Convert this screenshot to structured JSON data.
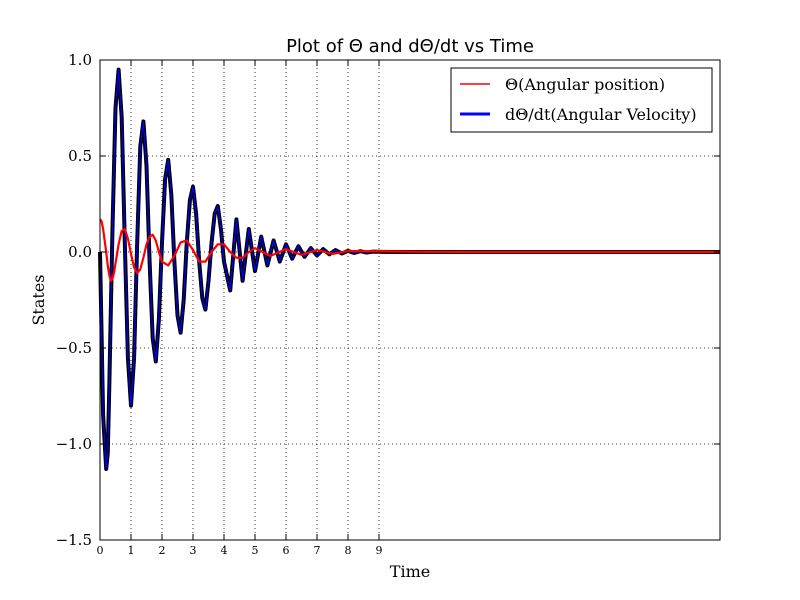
{
  "chart_data": {
    "type": "line",
    "title": "Plot of Θ and dΘ/dt vs Time",
    "xlabel": "Time",
    "ylabel": "States",
    "xlim": [
      0,
      20
    ],
    "ylim": [
      -1.5,
      1.0
    ],
    "xticks": [
      0,
      1,
      2,
      3,
      4,
      5,
      6,
      7,
      8,
      9
    ],
    "yticks": [
      1.0,
      0.5,
      0.0,
      -0.5,
      -1.0,
      -1.5
    ],
    "ytick_labels": [
      "1.0",
      "0.5",
      "0.0",
      "−0.5",
      "−1.0",
      "−1.5"
    ],
    "grid": true,
    "legend_position": "top-right",
    "series": [
      {
        "name": "Θ(Angular position)",
        "color": "#ff0000",
        "x": [
          0,
          0.05,
          0.1,
          0.15,
          0.2,
          0.25,
          0.3,
          0.35,
          0.4,
          0.45,
          0.5,
          0.6,
          0.7,
          0.8,
          0.9,
          1.0,
          1.1,
          1.2,
          1.3,
          1.4,
          1.5,
          1.6,
          1.7,
          1.8,
          1.9,
          2.0,
          2.2,
          2.4,
          2.6,
          2.8,
          3.0,
          3.2,
          3.4,
          3.6,
          3.8,
          4.0,
          4.2,
          4.4,
          4.6,
          4.8,
          5.0,
          5.5,
          6.0,
          6.5,
          7.0,
          7.5,
          8.0,
          9.0,
          10.0,
          12.0,
          14.0,
          16.0,
          18.0,
          20.0
        ],
        "y": [
          0.17,
          0.16,
          0.12,
          0.06,
          0.0,
          -0.07,
          -0.12,
          -0.15,
          -0.14,
          -0.11,
          -0.06,
          0.04,
          0.11,
          0.12,
          0.07,
          -0.01,
          -0.08,
          -0.11,
          -0.09,
          -0.03,
          0.04,
          0.08,
          0.09,
          0.06,
          0.0,
          -0.05,
          -0.07,
          -0.02,
          0.05,
          0.06,
          0.01,
          -0.05,
          -0.05,
          0.0,
          0.04,
          0.04,
          0.0,
          -0.03,
          -0.03,
          0.0,
          0.02,
          -0.02,
          0.015,
          -0.015,
          0.01,
          -0.01,
          0.005,
          0.004,
          0.002,
          0.0,
          0.0,
          0.0,
          0.0,
          0.0
        ]
      },
      {
        "name": "dΘ/dt(Angular Velocity)",
        "color": "#0000ff",
        "x": [
          0,
          0.1,
          0.2,
          0.25,
          0.3,
          0.4,
          0.5,
          0.6,
          0.7,
          0.8,
          0.9,
          1.0,
          1.1,
          1.2,
          1.3,
          1.4,
          1.5,
          1.6,
          1.7,
          1.8,
          1.9,
          2.0,
          2.1,
          2.2,
          2.3,
          2.4,
          2.5,
          2.6,
          2.7,
          2.8,
          2.9,
          3.0,
          3.1,
          3.2,
          3.3,
          3.4,
          3.5,
          3.6,
          3.7,
          3.8,
          3.9,
          4.0,
          4.2,
          4.4,
          4.6,
          4.8,
          5.0,
          5.2,
          5.4,
          5.6,
          5.8,
          6.0,
          6.2,
          6.4,
          6.6,
          6.8,
          7.0,
          7.2,
          7.4,
          7.6,
          7.8,
          8.0,
          8.2,
          8.4,
          8.6,
          8.8,
          9.0,
          9.5,
          10.0,
          11.0,
          12.0,
          14.0,
          16.0,
          18.0,
          20.0
        ],
        "y": [
          0.0,
          -0.85,
          -1.13,
          -1.05,
          -0.7,
          0.1,
          0.75,
          0.95,
          0.7,
          0.05,
          -0.55,
          -0.8,
          -0.55,
          0.05,
          0.55,
          0.68,
          0.45,
          -0.05,
          -0.45,
          -0.57,
          -0.35,
          0.05,
          0.38,
          0.48,
          0.3,
          -0.05,
          -0.33,
          -0.42,
          -0.25,
          0.05,
          0.27,
          0.34,
          0.2,
          -0.05,
          -0.24,
          -0.3,
          -0.15,
          0.05,
          0.2,
          0.24,
          0.12,
          -0.05,
          -0.2,
          0.17,
          -0.15,
          0.12,
          -0.1,
          0.08,
          -0.07,
          0.06,
          -0.05,
          0.04,
          -0.035,
          0.03,
          -0.025,
          0.02,
          -0.018,
          0.015,
          -0.012,
          0.01,
          -0.008,
          0.006,
          -0.005,
          0.004,
          -0.003,
          0.002,
          0.001,
          0.0,
          0.0,
          0.0,
          0.0,
          0.0,
          0.0,
          0.0,
          0.0
        ]
      }
    ]
  }
}
